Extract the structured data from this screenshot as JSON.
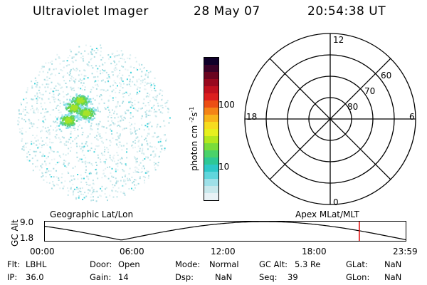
{
  "header": {
    "title": "Ultraviolet Imager",
    "date": "28 May 07",
    "time": "20:54:38 UT"
  },
  "colorbar": {
    "label": "photon cm",
    "exp1": "-2",
    "mid": "s",
    "exp2": "-1",
    "ticks": [
      "100",
      "10"
    ],
    "colors": [
      "#e8f2f6",
      "#c8e8ec",
      "#9ee0e8",
      "#60d6dc",
      "#2ec8c8",
      "#2ec896",
      "#4ad26a",
      "#7adc3a",
      "#b4e81e",
      "#e6f01e",
      "#f6dc1e",
      "#f8b41a",
      "#f48416",
      "#ec4e14",
      "#dc1e1e",
      "#c0101e",
      "#98081e",
      "#6a0420",
      "#3a0228",
      "#10002a"
    ]
  },
  "polar": {
    "mlt_labels": [
      "12",
      "18",
      "6",
      "0"
    ],
    "lat_labels": [
      "60",
      "70",
      "80"
    ]
  },
  "timeline": {
    "left_label": "Geographic Lat/Lon",
    "right_label": "Apex MLat/MLT",
    "axis_label": "GC Alt",
    "y_ticks": [
      "9.0",
      "1.8"
    ],
    "x_ticks": [
      "00:00",
      "06:00",
      "12:00",
      "18:00",
      "23:59"
    ],
    "marker_time_hours": 20.9,
    "marker_color": "#e00000"
  },
  "info": {
    "row1": [
      "Flt:",
      "LBHL",
      "Door:",
      "Open",
      "Mode:",
      "Normal",
      "GC Alt:",
      "5.3 Re",
      "GLat:",
      "NaN"
    ],
    "row2": [
      "IP:",
      "36.0",
      "Gain:",
      "14",
      "Dsp:",
      "NaN",
      "Seq:",
      "39",
      "GLon:",
      "NaN"
    ]
  }
}
